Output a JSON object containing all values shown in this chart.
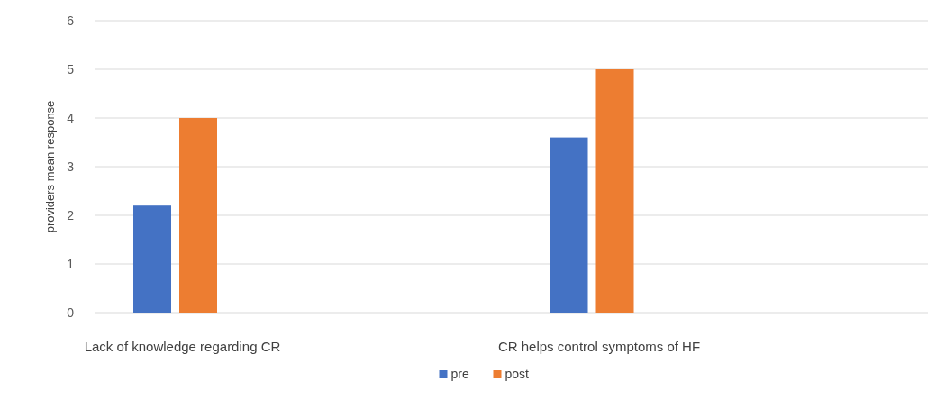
{
  "chart_data": {
    "type": "bar",
    "ylabel": "providers mean response",
    "categories": [
      "Lack of knowledge regarding CR",
      "CR helps control symptoms of HF"
    ],
    "series": [
      {
        "name": "pre",
        "color": "#4472c4",
        "values": [
          2.2,
          3.6
        ]
      },
      {
        "name": "post",
        "color": "#ed7d31",
        "values": [
          4.0,
          5.0
        ]
      }
    ],
    "ylim": [
      0,
      6
    ],
    "yticks": [
      0,
      1,
      2,
      3,
      4,
      5,
      6
    ],
    "grid": "y",
    "legend": "bottom"
  }
}
